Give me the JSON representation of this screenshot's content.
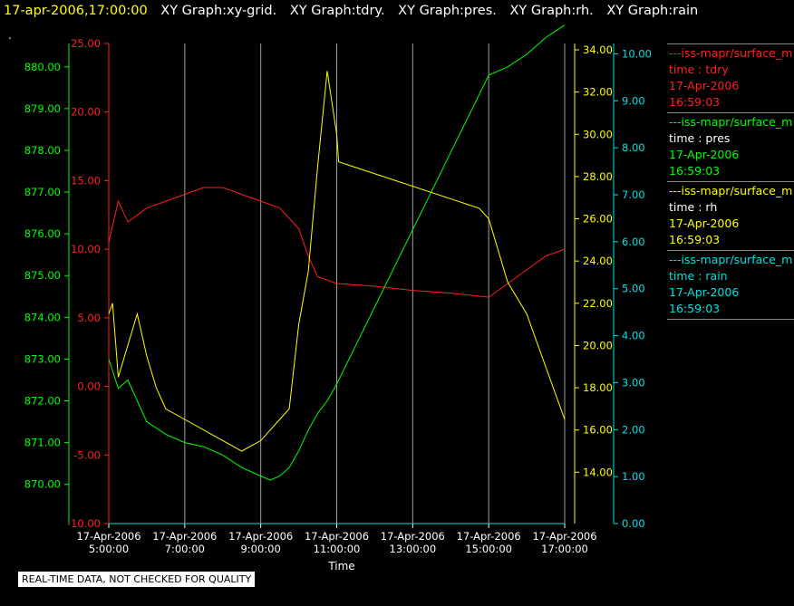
{
  "header": {
    "timestamp": "17-apr-2006,17:00:00",
    "graphs": [
      "XY Graph:xy-grid.",
      "XY Graph:tdry.",
      "XY Graph:pres.",
      "XY Graph:rh.",
      "XY Graph:rain"
    ]
  },
  "dot": ".",
  "disclaimer": "REAL-TIME DATA, NOT CHECKED FOR QUALITY",
  "colors": {
    "tdry": "#ff2020",
    "pres": "#00ff00",
    "rh": "#ffff00",
    "rain": "#00e0e0",
    "grid": "#a0a0a0",
    "axis_label": "#ffffff"
  },
  "legend": [
    {
      "name": "---iss-mapr/surface_m",
      "field": "time : tdry",
      "date": "17-Apr-2006",
      "time": "16:59:03",
      "color": "#ff2020",
      "field_color": "#ff2020",
      "date_color": "#ff2020",
      "time_color": "#ff2020"
    },
    {
      "name": "---iss-mapr/surface_m",
      "field": "time : pres",
      "date": "17-Apr-2006",
      "time": "16:59:03",
      "color": "#00ff00",
      "field_color": "#ffffff",
      "date_color": "#00ff00",
      "time_color": "#00ff00"
    },
    {
      "name": "---iss-mapr/surface_m",
      "field": "time : rh",
      "date": "17-Apr-2006",
      "time": "16:59:03",
      "color": "#ffff00",
      "field_color": "#ffffff",
      "date_color": "#ffff00",
      "time_color": "#ffff00"
    },
    {
      "name": "---iss-mapr/surface_m",
      "field": "time : rain",
      "date": "17-Apr-2006",
      "time": "16:59:03",
      "color": "#00e0e0",
      "field_color": "#00e0e0",
      "date_color": "#00e0e0",
      "time_color": "#00e0e0"
    }
  ],
  "chart_data": {
    "type": "line",
    "xlabel": "Time",
    "x_ticks": [
      {
        "hour": 5,
        "date": "17-Apr-2006",
        "time": "5:00:00"
      },
      {
        "hour": 7,
        "date": "17-Apr-2006",
        "time": "7:00:00"
      },
      {
        "hour": 9,
        "date": "17-Apr-2006",
        "time": "9:00:00"
      },
      {
        "hour": 11,
        "date": "17-Apr-2006",
        "time": "11:00:00"
      },
      {
        "hour": 13,
        "date": "17-Apr-2006",
        "time": "13:00:00"
      },
      {
        "hour": 15,
        "date": "17-Apr-2006",
        "time": "15:00:00"
      },
      {
        "hour": 17,
        "date": "17-Apr-2006",
        "time": "17:00:00"
      }
    ],
    "xlim": [
      5,
      17
    ],
    "grid": "vertical",
    "axes": {
      "pres": {
        "ylim": [
          869.06,
          880.56
        ],
        "ticks": [
          "870.00",
          "871.00",
          "872.00",
          "873.00",
          "874.00",
          "875.00",
          "876.00",
          "877.00",
          "878.00",
          "879.00",
          "880.00"
        ],
        "color": "#00ff00"
      },
      "tdry": {
        "ylim": [
          -10,
          25
        ],
        "ticks": [
          "-10.00",
          "-5.00",
          "0.00",
          "5.00",
          "10.00",
          "15.00",
          "20.00",
          "25.00"
        ],
        "color": "#ff2020"
      },
      "rh": {
        "ylim": [
          11.57,
          34.3
        ],
        "ticks": [
          "14.00",
          "16.00",
          "18.00",
          "20.00",
          "22.00",
          "24.00",
          "26.00",
          "28.00",
          "30.00",
          "32.00",
          "34.00"
        ],
        "color": "#ffff00"
      },
      "rain": {
        "ylim": [
          0,
          10.22
        ],
        "ticks": [
          "0.00",
          "1.00",
          "2.00",
          "3.00",
          "4.00",
          "5.00",
          "6.00",
          "7.00",
          "8.00",
          "9.00",
          "10.00"
        ],
        "color": "#00e0e0"
      }
    },
    "series": [
      {
        "name": "tdry",
        "axis": "tdry",
        "x": [
          5.0,
          5.25,
          5.5,
          6.0,
          6.5,
          7.0,
          7.5,
          8.0,
          8.5,
          9.0,
          9.5,
          10.0,
          10.25,
          10.5,
          11.0,
          12.0,
          13.0,
          14.0,
          15.0,
          15.5,
          16.0,
          16.5,
          17.0
        ],
        "y": [
          10.5,
          13.5,
          12.0,
          13.0,
          13.5,
          14.0,
          14.5,
          14.5,
          14.0,
          13.5,
          13.0,
          11.5,
          9.5,
          8.0,
          7.5,
          7.3,
          7.0,
          6.8,
          6.5,
          7.5,
          8.5,
          9.5,
          10.0
        ]
      },
      {
        "name": "pres",
        "axis": "pres",
        "x": [
          5.0,
          5.25,
          5.5,
          6.0,
          6.5,
          7.0,
          7.5,
          8.0,
          8.5,
          9.0,
          9.25,
          9.5,
          9.75,
          10.0,
          10.25,
          10.5,
          10.75,
          11.0,
          15.0,
          15.5,
          16.0,
          16.5,
          17.0
        ],
        "y": [
          873.0,
          872.3,
          872.5,
          871.5,
          871.2,
          871.0,
          870.9,
          870.7,
          870.4,
          870.2,
          870.1,
          870.2,
          870.4,
          870.8,
          871.3,
          871.7,
          872.0,
          872.4,
          879.8,
          880.0,
          880.3,
          880.7,
          881.0
        ]
      },
      {
        "name": "rh",
        "axis": "rh",
        "x": [
          5.0,
          5.1,
          5.25,
          5.5,
          5.75,
          6.0,
          6.25,
          6.5,
          7.0,
          7.5,
          8.0,
          8.5,
          9.0,
          9.5,
          9.75,
          10.0,
          10.25,
          10.5,
          10.75,
          11.0,
          11.05,
          14.75,
          15.0,
          15.5,
          16.0,
          16.5,
          17.0
        ],
        "y": [
          21.5,
          22.0,
          18.5,
          20.0,
          21.5,
          19.5,
          18.0,
          17.0,
          16.5,
          16.0,
          15.5,
          15.0,
          15.5,
          16.5,
          17.0,
          21.0,
          23.5,
          28.5,
          33.0,
          30.0,
          28.7,
          26.5,
          26.0,
          23.0,
          21.5,
          19.0,
          16.5
        ]
      },
      {
        "name": "rain",
        "axis": "rain",
        "x": [
          5.0,
          17.0
        ],
        "y": [
          0.0,
          0.0
        ]
      }
    ]
  }
}
